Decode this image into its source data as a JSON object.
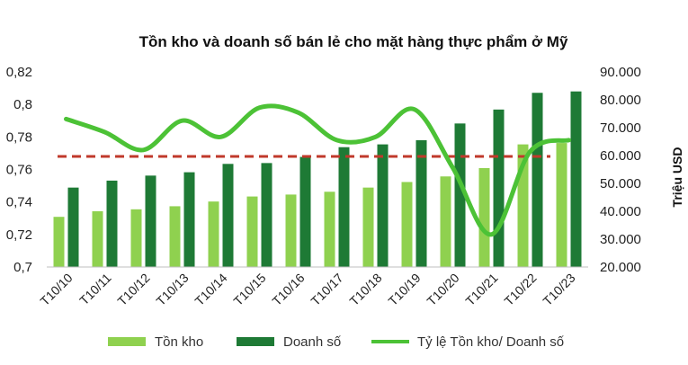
{
  "chart_data": {
    "type": "bar",
    "title": "Tồn kho và doanh số bán lẻ cho mặt hàng thực phẩm ở Mỹ",
    "categories": [
      "T10/10",
      "T10/11",
      "T10/12",
      "T10/13",
      "T10/14",
      "T10/15",
      "T10/16",
      "T10/17",
      "T10/18",
      "T10/19",
      "T10/20",
      "T10/21",
      "T10/22",
      "T10/23"
    ],
    "series": [
      {
        "name": "Tồn kho",
        "axis": "right",
        "type": "bar",
        "color": "#8fd14f",
        "values": [
          38000,
          40000,
          40700,
          41800,
          43500,
          45300,
          46000,
          47000,
          48500,
          50500,
          52500,
          55500,
          64000,
          64500
        ]
      },
      {
        "name": "Doanh số",
        "axis": "right",
        "type": "bar",
        "color": "#1e7a35",
        "values": [
          48500,
          51000,
          52800,
          54000,
          57000,
          57300,
          59500,
          63000,
          64000,
          65500,
          71500,
          76500,
          82500,
          83000
        ]
      },
      {
        "name": "Tỷ lệ Tồn kho/ Doanh số",
        "axis": "left",
        "type": "line",
        "color": "#4cc236",
        "values": [
          0.791,
          0.783,
          0.772,
          0.79,
          0.78,
          0.798,
          0.795,
          0.778,
          0.78,
          0.797,
          0.761,
          0.72,
          0.771,
          0.778
        ]
      }
    ],
    "reference_line": {
      "axis": "left",
      "value": 0.768,
      "color": "#c0392b",
      "style": "dashed"
    },
    "yaxis_left": {
      "ticks": [
        "0,7",
        "0,72",
        "0,74",
        "0,76",
        "0,78",
        "0,8",
        "0,82"
      ],
      "ylim": [
        0.7,
        0.82
      ]
    },
    "yaxis_right": {
      "label": "Triệu USD",
      "ticks": [
        "20.000",
        "30.000",
        "40.000",
        "50.000",
        "60.000",
        "70.000",
        "80.000",
        "90.000"
      ],
      "ylim": [
        20000,
        90000
      ]
    },
    "legend": {
      "position": "bottom"
    },
    "grid": false
  }
}
